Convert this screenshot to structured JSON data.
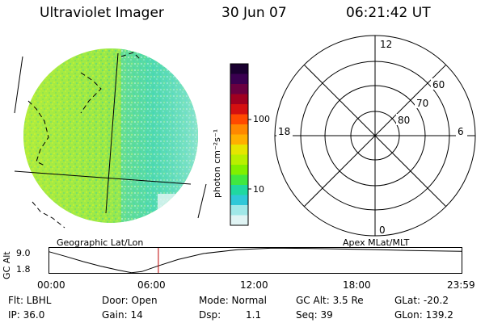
{
  "header": {
    "title": "Ultraviolet Imager",
    "date": "30 Jun 07",
    "time": "06:21:42 UT"
  },
  "colorbar": {
    "unit_label": "photon cm⁻²s⁻¹",
    "ticks": [
      "100",
      "10"
    ],
    "colors_top_to_bottom": [
      "#1a0030",
      "#3a0050",
      "#6a0040",
      "#a00020",
      "#d41010",
      "#ff4a00",
      "#ff8800",
      "#ffb000",
      "#e6e600",
      "#b8f000",
      "#80f000",
      "#40e840",
      "#20d8a0",
      "#30c8d8",
      "#a0e8e8",
      "#e0f4f4"
    ]
  },
  "polar_plot": {
    "mlt_labels": [
      "12",
      "6",
      "0",
      "18"
    ],
    "lat_labels": [
      "60",
      "70",
      "80"
    ]
  },
  "timeline": {
    "left_label": "Geographic Lat/Lon",
    "right_label": "Apex MLat/MLT",
    "axis_label": "GC Alt",
    "y_ticks": [
      "9.0",
      "1.8"
    ],
    "x_ticks": [
      "00:00",
      "06:00",
      "12:00",
      "18:00",
      "23:59"
    ],
    "orbit_altitude_re": [
      {
        "t": 0.0,
        "alt": 8.2
      },
      {
        "t": 1.0,
        "alt": 6.6
      },
      {
        "t": 2.0,
        "alt": 4.9
      },
      {
        "t": 3.0,
        "alt": 3.4
      },
      {
        "t": 4.0,
        "alt": 2.1
      },
      {
        "t": 4.8,
        "alt": 1.2
      },
      {
        "t": 5.4,
        "alt": 1.6
      },
      {
        "t": 6.36,
        "alt": 3.5
      },
      {
        "t": 7.5,
        "alt": 5.6
      },
      {
        "t": 9.0,
        "alt": 7.6
      },
      {
        "t": 11.0,
        "alt": 8.9
      },
      {
        "t": 13.0,
        "alt": 9.4
      },
      {
        "t": 15.0,
        "alt": 9.3
      },
      {
        "t": 17.0,
        "alt": 9.1
      },
      {
        "t": 19.0,
        "alt": 8.9
      },
      {
        "t": 21.0,
        "alt": 8.6
      },
      {
        "t": 23.98,
        "alt": 8.3
      }
    ],
    "current_time_hours": 6.36
  },
  "info": {
    "flt": "Flt: LBHL",
    "door": "Door: Open",
    "mode": "Mode: Normal",
    "gc_alt": "GC Alt: 3.5 Re",
    "glat": "GLat: -20.2",
    "ip": "IP: 36.0",
    "gain": "Gain: 14",
    "dsp_label": "Dsp:",
    "dsp_value": "1.1",
    "seq": "Seq: 39",
    "glon": "GLon: 139.2"
  }
}
